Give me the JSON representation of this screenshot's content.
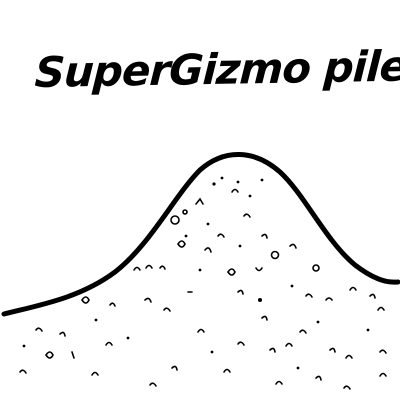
{
  "drawing": {
    "title": "SuperGizmo pile",
    "ink_color": "#000000",
    "background_color": "#ffffff"
  }
}
